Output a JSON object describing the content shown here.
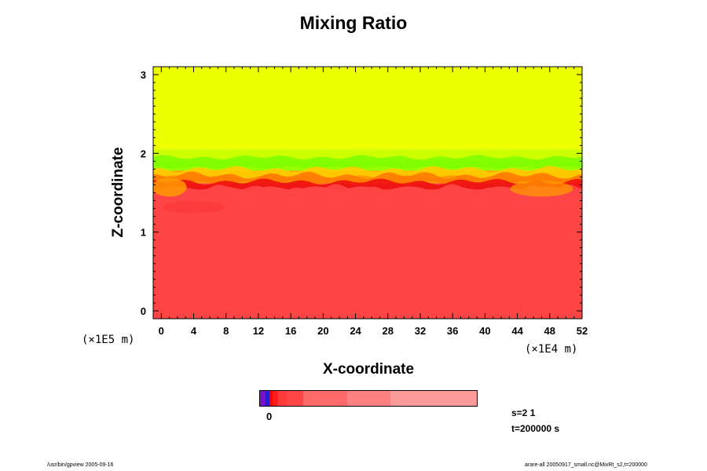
{
  "title": "Mixing Ratio",
  "chart_data": {
    "type": "heatmap",
    "title": "Mixing Ratio",
    "xlabel": "X-coordinate",
    "ylabel": "Z-coordinate",
    "x_unit": "(×1E4 m)",
    "y_unit": "(×1E5 m)",
    "xlim": [
      -1,
      52
    ],
    "ylim": [
      -0.1,
      3.1
    ],
    "x_ticks": [
      0,
      4,
      8,
      12,
      16,
      20,
      24,
      28,
      32,
      36,
      40,
      44,
      48,
      52
    ],
    "y_ticks": [
      0,
      1,
      2,
      3
    ],
    "layers": [
      {
        "z_from": -0.1,
        "z_to": 1.4,
        "color": "#fe4545"
      },
      {
        "z_from": 1.4,
        "z_to": 1.62,
        "color": "#fe4545",
        "note_color": "#ee1010"
      },
      {
        "z_from": 1.62,
        "z_to": 1.78,
        "color": "#ff9a00"
      },
      {
        "z_from": 1.78,
        "z_to": 1.9,
        "color": "#99ff00"
      },
      {
        "z_from": 1.9,
        "z_to": 2.05,
        "color": "#ccff00"
      },
      {
        "z_from": 2.05,
        "z_to": 3.1,
        "color": "#eeff00"
      }
    ],
    "colorbar": {
      "zero_label": "0",
      "segments": [
        "#7a10c8",
        "#2a1ad0",
        "#ff0000",
        "#ff1d1d",
        "#fe3a3a",
        "#fe4545",
        "#fe6a6a",
        "#fe8080",
        "#fd9a9a"
      ],
      "widths": [
        8,
        6,
        5,
        9,
        12,
        26,
        66,
        66,
        131
      ]
    }
  },
  "info": {
    "step": "s=2 1",
    "time": "t=200000 s"
  },
  "footer": {
    "left": "/usr/bin/gpview 2005-09-16",
    "right": "arare-all 20050917_small.nc@MixRt_s2,t=200000"
  }
}
